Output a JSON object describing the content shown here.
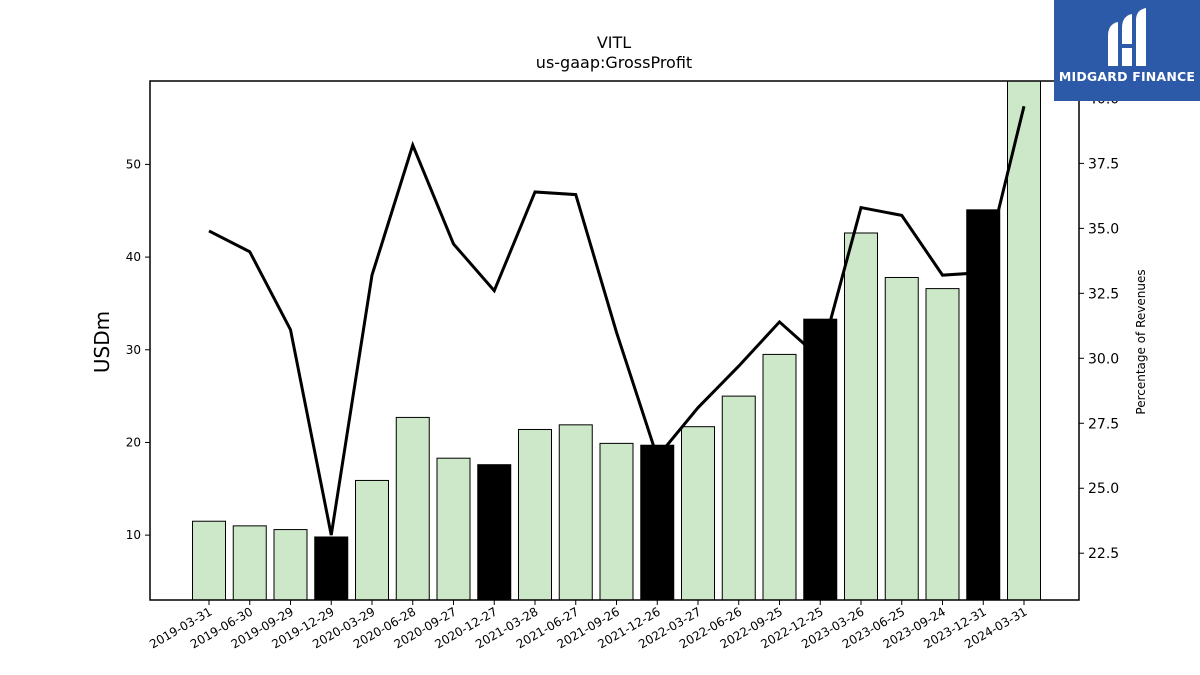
{
  "chart_data": {
    "type": "bar+line",
    "title": "VITL",
    "subtitle": "us-gaap:GrossProfit",
    "ylabel": "USDm",
    "y2label": "Percentage of Revenues",
    "categories": [
      "2019-03-31",
      "2019-06-30",
      "2019-09-29",
      "2019-12-29",
      "2020-03-29",
      "2020-06-28",
      "2020-09-27",
      "2020-12-27",
      "2021-03-28",
      "2021-06-27",
      "2021-09-26",
      "2021-12-26",
      "2022-03-27",
      "2022-06-26",
      "2022-09-25",
      "2022-12-25",
      "2023-03-26",
      "2023-06-25",
      "2023-09-24",
      "2023-12-31",
      "2024-03-31"
    ],
    "series": [
      {
        "type": "bar",
        "values": [
          11.5,
          11.0,
          10.6,
          9.8,
          15.9,
          22.7,
          18.3,
          17.6,
          21.4,
          21.9,
          19.9,
          19.7,
          21.7,
          25.0,
          29.5,
          33.3,
          42.6,
          37.8,
          36.6,
          45.1,
          59.0
        ],
        "highlight": [
          false,
          false,
          false,
          true,
          false,
          false,
          false,
          true,
          false,
          false,
          false,
          true,
          false,
          false,
          false,
          true,
          false,
          false,
          false,
          true,
          false
        ]
      },
      {
        "type": "line",
        "axis": "right",
        "values": [
          34.9,
          34.1,
          31.1,
          23.2,
          33.2,
          38.2,
          34.4,
          32.6,
          36.4,
          36.3,
          31.0,
          26.2,
          28.1,
          29.7,
          31.4,
          30.0,
          35.8,
          35.5,
          33.2,
          33.3,
          39.7
        ]
      }
    ],
    "ylim": [
      3.0,
      59.0
    ],
    "y2lim": [
      20.7,
      40.67
    ],
    "yticks": [
      "10",
      "20",
      "30",
      "40",
      "50"
    ],
    "y2ticks": [
      "22.5",
      "25.0",
      "27.5",
      "30.0",
      "32.5",
      "35.0",
      "37.5",
      "40.0"
    ],
    "colors": {
      "bar": "#cde8c8",
      "bar_highlight": "#000000",
      "line": "#000000"
    }
  },
  "logo": {
    "text": "MIDGARD FINANCE",
    "icon": "midgard-logo-icon"
  }
}
